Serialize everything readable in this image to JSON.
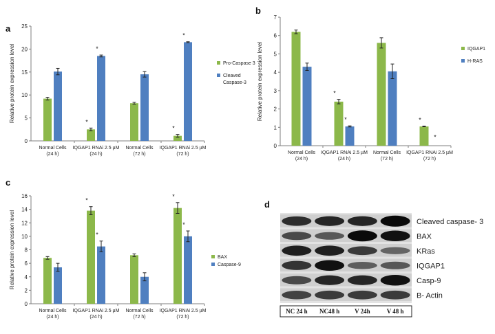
{
  "colors": {
    "green": "#8cb84a",
    "blue": "#4f7fc0"
  },
  "chart_data": [
    {
      "type": "bar",
      "panel": "a",
      "categories": [
        [
          "Normal Cells",
          "(24 h)"
        ],
        [
          "IQGAP1 RNAi 2.5 µM",
          "(24 h)"
        ],
        [
          "Normal Cells",
          "(72 h)"
        ],
        [
          "IQGAP1 RNAi 2.5 µM",
          "(72 h)"
        ]
      ],
      "series": [
        {
          "name": "Pro-Caspase 3",
          "values": [
            9.2,
            2.5,
            8.2,
            1.1
          ],
          "errors": [
            0.3,
            0.3,
            0.2,
            0.3
          ],
          "significant": [
            false,
            true,
            false,
            true
          ]
        },
        {
          "name": [
            "Cleaved",
            "Caspase-3"
          ],
          "values": [
            15.1,
            18.5,
            14.5,
            21.5
          ],
          "errors": [
            0.7,
            0.2,
            0.6,
            0.1
          ],
          "significant": [
            false,
            true,
            false,
            true
          ]
        }
      ],
      "ylabel": "Relative protein expression level",
      "ylim": [
        0,
        25
      ],
      "yticks": [
        0,
        5,
        10,
        15,
        20,
        25
      ],
      "grid": false,
      "legend": "right"
    },
    {
      "type": "bar",
      "panel": "b",
      "categories": [
        [
          "Normal Cells",
          "(24 h)"
        ],
        [
          "IQGAP1 RNAi 2.5 µM",
          "(24 h)"
        ],
        [
          "Normal Cells",
          "(72 h)"
        ],
        [
          "IQGAP1 RNAi 2.5 µM",
          "(72 h)"
        ]
      ],
      "series": [
        {
          "name": "IQGAP1",
          "values": [
            6.2,
            2.4,
            5.6,
            1.05
          ],
          "errors": [
            0.1,
            0.12,
            0.28,
            0.02
          ],
          "significant": [
            false,
            true,
            false,
            true
          ]
        },
        {
          "name": "H-RAS",
          "values": [
            4.3,
            1.05,
            4.05,
            0.0
          ],
          "errors": [
            0.2,
            0.03,
            0.4,
            0.0
          ],
          "significant": [
            false,
            true,
            false,
            true
          ]
        }
      ],
      "ylabel": "Relative protein expression level",
      "ylim": [
        0,
        7
      ],
      "yticks": [
        0,
        1,
        2,
        3,
        4,
        5,
        6,
        7
      ],
      "grid": false,
      "legend": "right"
    },
    {
      "type": "bar",
      "panel": "c",
      "categories": [
        [
          "Normal Cells",
          "(24 h)"
        ],
        [
          "IQGAP1 RNAi 2.5 µM",
          "(24 h)"
        ],
        [
          "Normal Cells",
          "(72 h)"
        ],
        [
          "IQGAP1 RNAi 2.5 µM",
          "(72 h)"
        ]
      ],
      "series": [
        {
          "name": "BAX",
          "values": [
            6.8,
            13.8,
            7.2,
            14.2
          ],
          "errors": [
            0.2,
            0.6,
            0.2,
            0.8
          ],
          "significant": [
            false,
            true,
            false,
            true
          ]
        },
        {
          "name": "Caspase-9",
          "values": [
            5.4,
            8.5,
            4.0,
            10.0
          ],
          "errors": [
            0.6,
            0.8,
            0.6,
            0.8
          ],
          "significant": [
            false,
            true,
            false,
            true
          ]
        }
      ],
      "ylabel": "Relative protein expression level",
      "ylim": [
        0,
        16
      ],
      "yticks": [
        0,
        2,
        4,
        6,
        8,
        10,
        12,
        14,
        16
      ],
      "grid": false,
      "legend": "right"
    }
  ],
  "blot": {
    "panel": "d",
    "rows": [
      "Cleaved caspase- 3",
      "BAX",
      "KRas",
      "IQGAP1",
      "Casp-9",
      "B- Actin"
    ],
    "lanes": [
      "NC 24 h",
      "NC48 h",
      "V 24h",
      "V 48 h"
    ],
    "intensity": [
      [
        0.75,
        0.8,
        0.8,
        1.0
      ],
      [
        0.55,
        0.45,
        1.0,
        0.95
      ],
      [
        0.85,
        0.85,
        0.65,
        0.35
      ],
      [
        0.7,
        0.95,
        0.4,
        0.45
      ],
      [
        0.55,
        0.8,
        0.8,
        0.95
      ],
      [
        0.6,
        0.65,
        0.65,
        0.65
      ]
    ]
  }
}
